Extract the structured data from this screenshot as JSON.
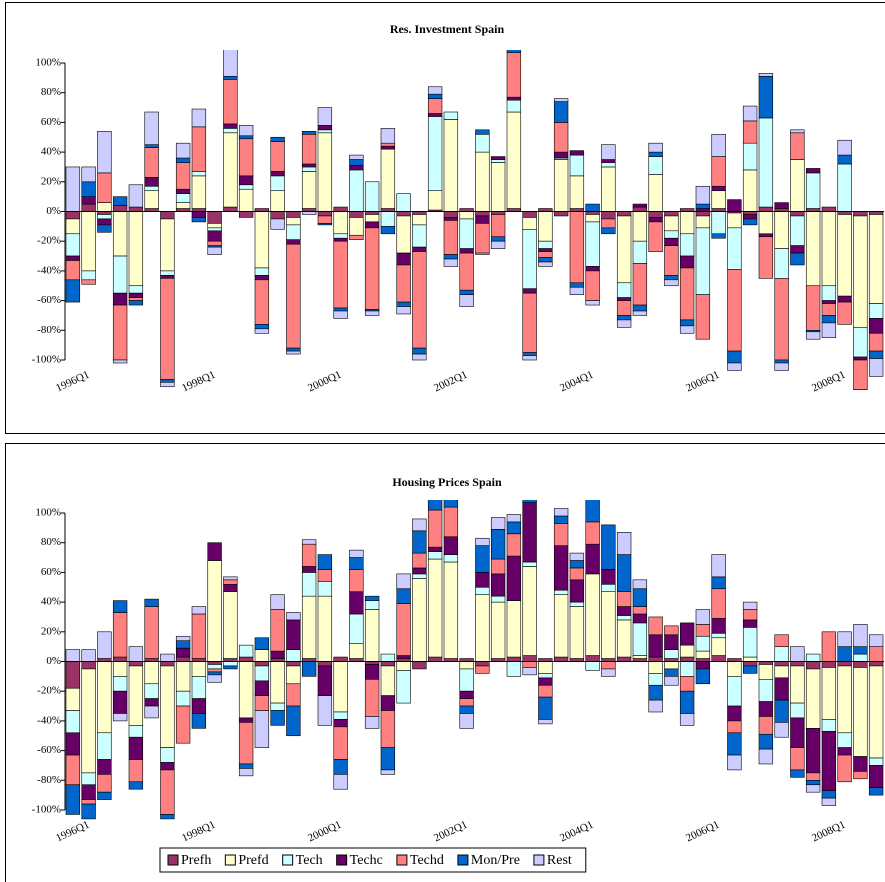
{
  "chart_data": [
    {
      "type": "bar",
      "title": "Res. Investment Spain",
      "legend": false,
      "grid": false,
      "categories": [
        "1996Q1",
        null,
        null,
        null,
        null,
        null,
        null,
        null,
        "1998Q1",
        null,
        null,
        null,
        null,
        null,
        null,
        null,
        "2000Q1",
        null,
        null,
        null,
        null,
        null,
        null,
        null,
        "2002Q1",
        null,
        null,
        null,
        null,
        null,
        null,
        null,
        "2004Q1",
        null,
        null,
        null,
        null,
        null,
        null,
        null,
        "2006Q1",
        null,
        null,
        null,
        null,
        null,
        null,
        null,
        "2008Q1",
        null,
        null,
        null
      ],
      "ylim": [
        -100,
        100
      ],
      "yticks": [
        {
          "value": -100,
          "label": "-100%"
        },
        {
          "value": -80,
          "label": "-80%"
        },
        {
          "value": -60,
          "label": "-60%"
        },
        {
          "value": -40,
          "label": "-40%"
        },
        {
          "value": -20,
          "label": "-20%"
        },
        {
          "value": 0,
          "label": "0%"
        },
        {
          "value": 20,
          "label": "20%"
        },
        {
          "value": 40,
          "label": "40%"
        },
        {
          "value": 60,
          "label": "60%"
        },
        {
          "value": 80,
          "label": "80%"
        },
        {
          "value": 100,
          "label": "100%"
        }
      ],
      "series": [
        {
          "name": "Prefh",
          "color": "#993366",
          "values": [
            -5,
            5,
            -2,
            4,
            3,
            2,
            -5,
            2,
            2,
            -8,
            3,
            -4,
            2,
            -5,
            -4,
            2,
            -3,
            3,
            -4,
            -2,
            2,
            -3,
            -2,
            1,
            -4,
            2,
            -3,
            -2,
            2,
            -4,
            2,
            -3,
            2,
            -2,
            -5,
            -3,
            3,
            -4,
            -3,
            2,
            -3,
            2,
            -1,
            -2,
            3,
            2,
            -3,
            2,
            3,
            -2,
            -3,
            -2
          ]
        },
        {
          "name": "Prefd",
          "color": "#FFFFCC",
          "values": [
            -10,
            -40,
            6,
            -30,
            -50,
            12,
            -35,
            4,
            22,
            -3,
            50,
            15,
            -38,
            14,
            -5,
            25,
            53,
            -15,
            -12,
            -5,
            40,
            -25,
            -7,
            13,
            62,
            -5,
            40,
            33,
            65,
            -8,
            -20,
            35,
            22,
            -5,
            30,
            -45,
            -20,
            25,
            -10,
            -15,
            -8,
            12,
            -10,
            28,
            -15,
            -25,
            35,
            -50,
            -50,
            -55,
            -75,
            -60
          ]
        },
        {
          "name": "Tech",
          "color": "#CCFFFF",
          "values": [
            -15,
            -6,
            -3,
            -25,
            -5,
            3,
            -3,
            6,
            3,
            -2,
            3,
            3,
            -5,
            10,
            -10,
            3,
            2,
            -3,
            28,
            20,
            -10,
            12,
            -15,
            50,
            5,
            -20,
            12,
            2,
            8,
            -40,
            -5,
            1,
            14,
            -30,
            3,
            -10,
            -15,
            12,
            -5,
            -15,
            -45,
            -15,
            -28,
            18,
            60,
            -20,
            -20,
            24,
            -10,
            32,
            -20,
            -10
          ]
        },
        {
          "name": "Techc",
          "color": "#660066",
          "values": [
            -3,
            5,
            -4,
            -8,
            -3,
            6,
            -2,
            3,
            -4,
            -7,
            3,
            6,
            -3,
            3,
            -3,
            2,
            3,
            -2,
            3,
            -4,
            2,
            -8,
            -3,
            2,
            -2,
            -3,
            -5,
            2,
            2,
            -3,
            -2,
            4,
            3,
            -3,
            2,
            -2,
            2,
            -3,
            -5,
            -8,
            2,
            3,
            8,
            -3,
            -2,
            4,
            -5,
            3,
            -2,
            -4,
            -2,
            -10
          ]
        },
        {
          "name": "Techd",
          "color": "#FF8080",
          "values": [
            -13,
            -3,
            20,
            -37,
            -2,
            20,
            -68,
            18,
            30,
            -3,
            30,
            25,
            -30,
            20,
            -70,
            20,
            -5,
            -45,
            -3,
            -55,
            2,
            -25,
            -65,
            10,
            -23,
            -25,
            -20,
            -15,
            30,
            -40,
            -4,
            20,
            -48,
            -20,
            -6,
            -10,
            -28,
            -20,
            -20,
            -35,
            -30,
            20,
            -55,
            15,
            -28,
            -55,
            18,
            -30,
            -8,
            -15,
            -20,
            -12
          ]
        },
        {
          "name": "Mon/Pre",
          "color": "#0066CC",
          "values": [
            -15,
            10,
            -5,
            6,
            -3,
            2,
            -2,
            3,
            -3,
            -1,
            2,
            2,
            -3,
            3,
            -2,
            2,
            -1,
            -2,
            4,
            -1,
            -5,
            -3,
            -4,
            3,
            -3,
            -3,
            3,
            -3,
            2,
            -2,
            -3,
            14,
            -3,
            5,
            -4,
            -3,
            -4,
            3,
            -3,
            -4,
            3,
            -3,
            -8,
            -4,
            28,
            -2,
            -8,
            -1,
            -5,
            6,
            -6,
            -5
          ]
        },
        {
          "name": "Rest",
          "color": "#CCCCFF",
          "values": [
            30,
            10,
            28,
            -2,
            15,
            22,
            -3,
            10,
            12,
            -5,
            23,
            7,
            -3,
            -7,
            -2,
            -2,
            12,
            -5,
            3,
            -3,
            10,
            -5,
            -4,
            5,
            -5,
            -8,
            -1,
            -5,
            12,
            -3,
            -3,
            2,
            -5,
            -3,
            10,
            -5,
            -3,
            6,
            -4,
            -5,
            12,
            15,
            -5,
            10,
            2,
            -5,
            2,
            -5,
            -10,
            10,
            -10,
            -12
          ]
        }
      ]
    },
    {
      "type": "bar",
      "title": "Housing Prices Spain",
      "legend": "bottom",
      "grid": false,
      "categories": [
        "1996Q1",
        null,
        null,
        null,
        null,
        null,
        null,
        null,
        "1998Q1",
        null,
        null,
        null,
        null,
        null,
        null,
        null,
        "2000Q1",
        null,
        null,
        null,
        null,
        null,
        null,
        null,
        "2002Q1",
        null,
        null,
        null,
        null,
        null,
        null,
        null,
        "2004Q1",
        null,
        null,
        null,
        null,
        null,
        null,
        null,
        "2006Q1",
        null,
        null,
        null,
        null,
        null,
        null,
        null,
        "2008Q1",
        null,
        null,
        null
      ],
      "ylim": [
        -100,
        100
      ],
      "yticks": [
        {
          "value": -100,
          "label": "-100%"
        },
        {
          "value": -80,
          "label": "-80%"
        },
        {
          "value": -60,
          "label": "-60%"
        },
        {
          "value": -40,
          "label": "-40%"
        },
        {
          "value": -20,
          "label": "-20%"
        },
        {
          "value": 0,
          "label": "0%"
        },
        {
          "value": 20,
          "label": "20%"
        },
        {
          "value": 40,
          "label": "40%"
        },
        {
          "value": 60,
          "label": "60%"
        },
        {
          "value": 80,
          "label": "80%"
        },
        {
          "value": 100,
          "label": "100%"
        }
      ],
      "series": [
        {
          "name": "Prefh",
          "color": "#993366",
          "values": [
            -18,
            -5,
            2,
            3,
            -3,
            2,
            -3,
            3,
            2,
            -2,
            2,
            3,
            -3,
            2,
            -3,
            2,
            -3,
            3,
            2,
            -2,
            -3,
            2,
            -5,
            3,
            2,
            2,
            -3,
            2,
            3,
            4,
            2,
            3,
            2,
            4,
            2,
            3,
            2,
            3,
            2,
            3,
            2,
            4,
            2,
            -3,
            -2,
            -3,
            -3,
            -5,
            -4,
            -3,
            -4,
            -3
          ]
        },
        {
          "name": "Prefd",
          "color": "#FFFFCC",
          "values": [
            -15,
            -70,
            -48,
            -10,
            -40,
            -15,
            -55,
            -20,
            -10,
            68,
            45,
            -38,
            8,
            -28,
            -12,
            42,
            44,
            -34,
            10,
            35,
            -20,
            -6,
            56,
            66,
            65,
            -5,
            45,
            38,
            38,
            60,
            -8,
            42,
            35,
            55,
            45,
            25,
            2,
            -8,
            -5,
            8,
            5,
            12,
            -10,
            3,
            -10,
            -8,
            -25,
            -40,
            -35,
            -45,
            -60,
            -62
          ]
        },
        {
          "name": "Tech",
          "color": "#CCFFFF",
          "values": [
            -15,
            -8,
            -18,
            -10,
            -8,
            -10,
            -10,
            -10,
            -15,
            -3,
            -3,
            8,
            -10,
            -5,
            8,
            16,
            10,
            -5,
            20,
            6,
            5,
            -22,
            3,
            5,
            5,
            -15,
            5,
            4,
            -10,
            3,
            -3,
            3,
            3,
            -6,
            5,
            3,
            22,
            -8,
            6,
            -10,
            10,
            3,
            -20,
            20,
            -15,
            10,
            -10,
            5,
            -8,
            -10,
            5,
            -5
          ]
        },
        {
          "name": "Techc",
          "color": "#660066",
          "values": [
            -15,
            -10,
            -10,
            -15,
            -15,
            -5,
            -5,
            6,
            -10,
            12,
            5,
            -3,
            -10,
            5,
            20,
            4,
            -20,
            -5,
            15,
            -10,
            -10,
            2,
            4,
            3,
            12,
            -5,
            10,
            15,
            30,
            40,
            -5,
            30,
            15,
            20,
            10,
            6,
            6,
            15,
            10,
            15,
            -5,
            10,
            -10,
            5,
            -10,
            -15,
            -20,
            -30,
            -40,
            -5,
            -10,
            -15
          ]
        },
        {
          "name": "Techd",
          "color": "#FF8080",
          "values": [
            -20,
            -3,
            -12,
            30,
            -15,
            35,
            -30,
            -25,
            30,
            -2,
            3,
            -28,
            -10,
            28,
            -15,
            15,
            8,
            -22,
            15,
            -25,
            -25,
            35,
            10,
            25,
            20,
            -5,
            -5,
            10,
            15,
            -4,
            -8,
            15,
            8,
            15,
            -5,
            10,
            5,
            12,
            6,
            -10,
            8,
            20,
            -8,
            7,
            -12,
            8,
            -15,
            -5,
            20,
            -18,
            -5,
            10
          ]
        },
        {
          "name": "Mon/Pre",
          "color": "#0066CC",
          "values": [
            -20,
            -10,
            -5,
            8,
            -5,
            5,
            -3,
            5,
            -10,
            -2,
            -2,
            -3,
            8,
            -10,
            -20,
            -10,
            10,
            -10,
            8,
            3,
            -15,
            10,
            15,
            15,
            10,
            -5,
            18,
            20,
            8,
            10,
            -15,
            5,
            5,
            15,
            30,
            25,
            12,
            -10,
            -5,
            -15,
            -10,
            8,
            -15,
            -5,
            -10,
            -15,
            -5,
            -3,
            -5,
            10,
            5,
            -5
          ]
        },
        {
          "name": "Rest",
          "color": "#CCCCFF",
          "values": [
            8,
            8,
            18,
            -5,
            10,
            -8,
            5,
            3,
            5,
            -5,
            2,
            -5,
            -25,
            10,
            5,
            3,
            -20,
            -10,
            5,
            -8,
            -3,
            10,
            8,
            10,
            10,
            -10,
            5,
            8,
            5,
            -5,
            -3,
            5,
            5,
            8,
            -5,
            15,
            6,
            -8,
            -6,
            -8,
            10,
            15,
            -10,
            5,
            -10,
            -10,
            10,
            -5,
            -5,
            10,
            15,
            8
          ]
        }
      ]
    }
  ]
}
